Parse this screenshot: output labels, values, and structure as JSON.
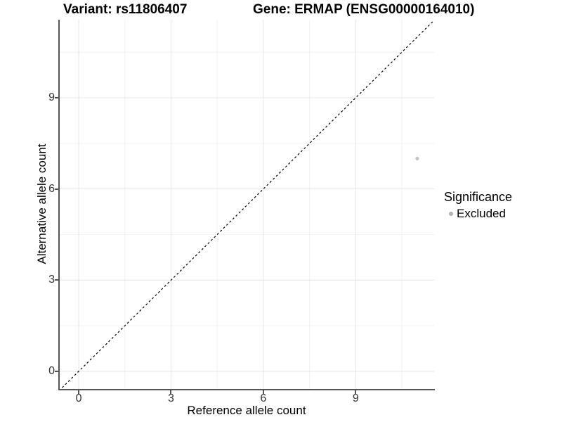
{
  "page": {
    "background": "#ffffff"
  },
  "chart_data": {
    "type": "scatter",
    "title_left": "Variant: rs11806407",
    "title_right": "Gene: ERMAP (ENSG00000164010)",
    "xlabel": "Reference allele count",
    "ylabel": "Alternative allele count",
    "xlim": [
      -0.64,
      11.55
    ],
    "ylim": [
      -0.58,
      11.57
    ],
    "x_ticks": [
      0,
      3,
      6,
      9
    ],
    "y_ticks": [
      0,
      3,
      6,
      9
    ],
    "x_minor_ticks": [
      1.5,
      4.5,
      7.5,
      10.5
    ],
    "y_minor_ticks": [
      1.5,
      4.5,
      7.5,
      10.5
    ],
    "grid": "on",
    "identity_line": {
      "equation": "y = x",
      "style": "dashed",
      "color": "#000000"
    },
    "series": [
      {
        "name": "Excluded",
        "color": "#c2c2c2",
        "points": [
          {
            "x": 11,
            "y": 7
          }
        ]
      }
    ],
    "legend": {
      "title": "Significance",
      "position": "right",
      "items": [
        {
          "label": "Excluded",
          "color": "#b0b0b0"
        }
      ]
    },
    "colors": {
      "axis": "#555555",
      "grid_major": "#e6e6e6",
      "grid_minor": "#f2f2f2",
      "tick_label": "#333333",
      "title": "#000000"
    }
  }
}
